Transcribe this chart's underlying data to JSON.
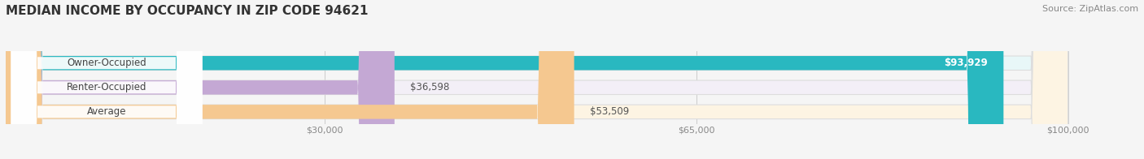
{
  "title": "MEDIAN INCOME BY OCCUPANCY IN ZIP CODE 94621",
  "source": "Source: ZipAtlas.com",
  "categories": [
    "Owner-Occupied",
    "Renter-Occupied",
    "Average"
  ],
  "values": [
    93929,
    36598,
    53509
  ],
  "bar_colors": [
    "#29b8c0",
    "#c4a8d4",
    "#f5c890"
  ],
  "bar_bg_colors": [
    "#e8f7f8",
    "#f3eff7",
    "#fdf4e3"
  ],
  "value_labels": [
    "$93,929",
    "$36,598",
    "$53,509"
  ],
  "value_label_colors": [
    "#ffffff",
    "#555555",
    "#555555"
  ],
  "xlim": [
    0,
    105000
  ],
  "xticks": [
    30000,
    65000,
    100000
  ],
  "xtick_labels": [
    "$30,000",
    "$65,000",
    "$100,000"
  ],
  "title_fontsize": 11,
  "source_fontsize": 8,
  "label_fontsize": 8.5,
  "value_fontsize": 8.5,
  "bar_height": 0.58,
  "background_color": "#f5f5f5"
}
